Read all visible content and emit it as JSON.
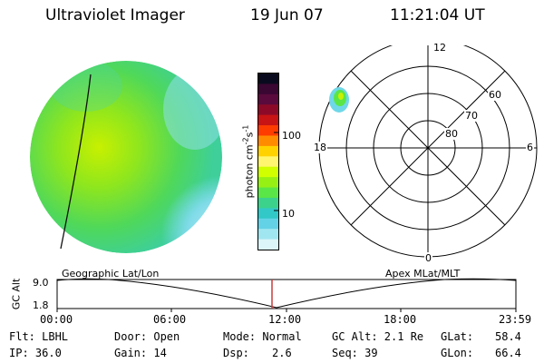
{
  "header": {
    "title": "Ultraviolet Imager",
    "date": "19 Jun 07",
    "time": "11:21:04 UT"
  },
  "colorbar": {
    "unit_label": "photon cm",
    "unit_sup1": "-2",
    "unit_mid": "s",
    "unit_sup2": "-1",
    "ticks": [
      "100",
      "10"
    ],
    "colors": [
      "#0a0a1e",
      "#3a0632",
      "#5a0a3c",
      "#8c0a28",
      "#c81414",
      "#ff3c00",
      "#ff8c00",
      "#ffd200",
      "#fff56e",
      "#d2ff00",
      "#96f014",
      "#5ae646",
      "#3cd28c",
      "#32c8c8",
      "#64d2e6",
      "#a0e6f0",
      "#dcf5f8"
    ]
  },
  "polar": {
    "top_label": "12",
    "bottom_label": "0",
    "left_label": "18",
    "right_label": "6",
    "lat_labels": [
      "60",
      "70",
      "80"
    ]
  },
  "timeline": {
    "left_title": "Geographic Lat/Lon",
    "right_title": "Apex MLat/MLT",
    "axis_label": "GC Alt",
    "y_max": "9.0",
    "y_min": "1.8",
    "x_ticks": [
      "00:00",
      "06:00",
      "12:00",
      "18:00",
      "23:59"
    ]
  },
  "status": {
    "flt": "Flt: LBHL",
    "ip": "IP: 36.0",
    "door": "Door: Open",
    "gain": "Gain: 14",
    "mode": "Mode: Normal",
    "dsp_label": "Dsp:",
    "dsp_value": "2.6",
    "gc_alt": "GC Alt: 2.1 Re",
    "seq": "Seq: 39",
    "glat_label": "GLat:",
    "glat_value": "58.4",
    "glon_label": "GLon:",
    "glon_value": "66.4"
  }
}
